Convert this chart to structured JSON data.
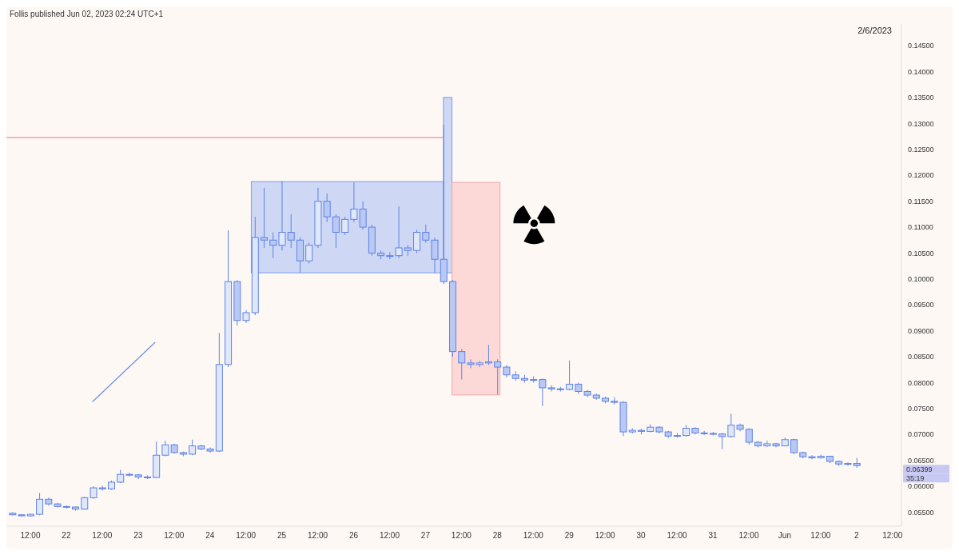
{
  "chart_data": {
    "type": "candlestick",
    "subtitle": "2/6/2023",
    "annotations": [
      "Follis published Jun 02, 2023 02:24 UTC+1",
      "0.06399",
      "35:19"
    ],
    "color": "#5f83e6",
    "x": [
      "2023-05-21T06:00",
      "2023-05-21T09:00",
      "2023-05-21T12:00",
      "2023-05-21T15:00",
      "2023-05-21T18:00",
      "2023-05-21T21:00",
      "2023-05-22T00:00",
      "2023-05-22T03:00",
      "2023-05-22T06:00",
      "2023-05-22T09:00",
      "2023-05-22T12:00",
      "2023-05-22T15:00",
      "2023-05-22T18:00",
      "2023-05-22T21:00",
      "2023-05-23T00:00",
      "2023-05-23T03:00",
      "2023-05-23T06:00",
      "2023-05-23T09:00",
      "2023-05-23T12:00",
      "2023-05-23T15:00",
      "2023-05-23T18:00",
      "2023-05-23T21:00",
      "2023-05-24T00:00",
      "2023-05-24T03:00",
      "2023-05-24T06:00",
      "2023-05-24T09:00",
      "2023-05-24T12:00",
      "2023-05-24T15:00",
      "2023-05-24T18:00",
      "2023-05-24T21:00",
      "2023-05-25T00:00",
      "2023-05-25T03:00",
      "2023-05-25T06:00",
      "2023-05-25T09:00",
      "2023-05-25T12:00",
      "2023-05-25T15:00",
      "2023-05-25T18:00",
      "2023-05-25T21:00",
      "2023-05-26T00:00",
      "2023-05-26T03:00",
      "2023-05-26T06:00",
      "2023-05-26T09:00",
      "2023-05-26T12:00",
      "2023-05-26T15:00",
      "2023-05-26T18:00",
      "2023-05-26T21:00",
      "2023-05-27T00:00",
      "2023-05-27T03:00",
      "2023-05-27T06:00",
      "2023-05-27T09:00",
      "2023-05-27T12:00",
      "2023-05-27T15:00",
      "2023-05-27T18:00",
      "2023-05-27T21:00",
      "2023-05-28T00:00",
      "2023-05-28T03:00",
      "2023-05-28T06:00",
      "2023-05-28T09:00",
      "2023-05-28T12:00",
      "2023-05-28T15:00",
      "2023-05-28T18:00",
      "2023-05-28T21:00",
      "2023-05-29T00:00",
      "2023-05-29T03:00",
      "2023-05-29T06:00",
      "2023-05-29T09:00",
      "2023-05-29T12:00",
      "2023-05-29T15:00",
      "2023-05-29T18:00",
      "2023-05-29T21:00",
      "2023-05-30T00:00",
      "2023-05-30T03:00",
      "2023-05-30T06:00",
      "2023-05-30T09:00",
      "2023-05-30T12:00",
      "2023-05-30T15:00",
      "2023-05-30T18:00",
      "2023-05-30T21:00",
      "2023-05-31T00:00",
      "2023-05-31T03:00",
      "2023-05-31T06:00",
      "2023-05-31T09:00",
      "2023-05-31T12:00",
      "2023-05-31T15:00",
      "2023-05-31T18:00",
      "2023-05-31T21:00",
      "2023-06-01T00:00",
      "2023-06-01T03:00",
      "2023-06-01T06:00",
      "2023-06-01T09:00",
      "2023-06-01T12:00",
      "2023-06-01T15:00",
      "2023-06-01T18:00",
      "2023-06-01T21:00",
      "2023-06-02T00:00"
    ],
    "ohlc": [
      [
        0.0548,
        0.055,
        0.0544,
        0.0545
      ],
      [
        0.0545,
        0.0546,
        0.0542,
        0.0543
      ],
      [
        0.0543,
        0.0547,
        0.0542,
        0.0546
      ],
      [
        0.0546,
        0.0587,
        0.0544,
        0.0575
      ],
      [
        0.0575,
        0.0578,
        0.0563,
        0.0566
      ],
      [
        0.0566,
        0.0568,
        0.0559,
        0.0561
      ],
      [
        0.0561,
        0.0563,
        0.0557,
        0.056
      ],
      [
        0.056,
        0.0561,
        0.0553,
        0.0556
      ],
      [
        0.0556,
        0.058,
        0.0555,
        0.0578
      ],
      [
        0.0578,
        0.06,
        0.0576,
        0.0597
      ],
      [
        0.0597,
        0.0601,
        0.0592,
        0.0595
      ],
      [
        0.0595,
        0.0611,
        0.0593,
        0.0608
      ],
      [
        0.0608,
        0.0632,
        0.0606,
        0.0623
      ],
      [
        0.0623,
        0.0626,
        0.0619,
        0.0622
      ],
      [
        0.0622,
        0.0624,
        0.0614,
        0.0618
      ],
      [
        0.0618,
        0.0621,
        0.0614,
        0.0617
      ],
      [
        0.0617,
        0.0686,
        0.0616,
        0.066
      ],
      [
        0.066,
        0.0688,
        0.0658,
        0.068
      ],
      [
        0.068,
        0.0682,
        0.0663,
        0.0665
      ],
      [
        0.0665,
        0.0667,
        0.0658,
        0.0662
      ],
      [
        0.0662,
        0.069,
        0.066,
        0.0678
      ],
      [
        0.0678,
        0.068,
        0.067,
        0.0672
      ],
      [
        0.0672,
        0.0675,
        0.0665,
        0.0668
      ],
      [
        0.0668,
        0.0896,
        0.0666,
        0.0835
      ],
      [
        0.0835,
        0.1094,
        0.083,
        0.0995
      ],
      [
        0.0995,
        0.0998,
        0.091,
        0.092
      ],
      [
        0.092,
        0.094,
        0.0915,
        0.0935
      ],
      [
        0.0935,
        0.112,
        0.093,
        0.108
      ],
      [
        0.108,
        0.1176,
        0.106,
        0.1075
      ],
      [
        0.1075,
        0.109,
        0.104,
        0.1065
      ],
      [
        0.1065,
        0.1189,
        0.1055,
        0.109
      ],
      [
        0.109,
        0.1125,
        0.106,
        0.1075
      ],
      [
        0.1075,
        0.108,
        0.1012,
        0.1035
      ],
      [
        0.1035,
        0.107,
        0.103,
        0.1065
      ],
      [
        0.1065,
        0.1176,
        0.106,
        0.115
      ],
      [
        0.115,
        0.1165,
        0.111,
        0.112
      ],
      [
        0.112,
        0.1125,
        0.106,
        0.109
      ],
      [
        0.109,
        0.112,
        0.1085,
        0.1115
      ],
      [
        0.1115,
        0.1186,
        0.111,
        0.1135
      ],
      [
        0.1135,
        0.115,
        0.1095,
        0.11
      ],
      [
        0.11,
        0.1105,
        0.1045,
        0.105
      ],
      [
        0.105,
        0.1055,
        0.1038,
        0.1045
      ],
      [
        0.1045,
        0.1052,
        0.1038,
        0.1045
      ],
      [
        0.1045,
        0.114,
        0.104,
        0.106
      ],
      [
        0.106,
        0.1065,
        0.1045,
        0.1055
      ],
      [
        0.1055,
        0.1095,
        0.105,
        0.109
      ],
      [
        0.109,
        0.1105,
        0.107,
        0.1075
      ],
      [
        0.1075,
        0.108,
        0.1012,
        0.1038
      ],
      [
        0.1038,
        0.1298,
        0.099,
        0.0995
      ],
      [
        0.0995,
        0.0998,
        0.085,
        0.086
      ],
      [
        0.086,
        0.0865,
        0.0806,
        0.0838
      ],
      [
        0.0838,
        0.0845,
        0.0828,
        0.0835
      ],
      [
        0.0835,
        0.0842,
        0.083,
        0.0838
      ],
      [
        0.0838,
        0.0873,
        0.0834,
        0.084
      ],
      [
        0.084,
        0.0845,
        0.0777,
        0.083
      ],
      [
        0.083,
        0.0834,
        0.081,
        0.0815
      ],
      [
        0.0815,
        0.0822,
        0.0804,
        0.0808
      ],
      [
        0.0808,
        0.0815,
        0.08,
        0.0805
      ],
      [
        0.0805,
        0.0812,
        0.08,
        0.0806
      ],
      [
        0.0806,
        0.0808,
        0.0755,
        0.079
      ],
      [
        0.079,
        0.0795,
        0.0783,
        0.0788
      ],
      [
        0.0788,
        0.0792,
        0.0783,
        0.0787
      ],
      [
        0.0787,
        0.0843,
        0.0785,
        0.0797
      ],
      [
        0.0797,
        0.08,
        0.0778,
        0.0783
      ],
      [
        0.0783,
        0.0786,
        0.0772,
        0.0776
      ],
      [
        0.0776,
        0.0779,
        0.0767,
        0.077
      ],
      [
        0.077,
        0.0773,
        0.076,
        0.0764
      ],
      [
        0.0764,
        0.0772,
        0.0758,
        0.0762
      ],
      [
        0.0762,
        0.0764,
        0.0697,
        0.0705
      ],
      [
        0.0705,
        0.0712,
        0.0702,
        0.0708
      ],
      [
        0.0708,
        0.0711,
        0.07,
        0.0706
      ],
      [
        0.0706,
        0.072,
        0.0704,
        0.0714
      ],
      [
        0.0714,
        0.0716,
        0.0702,
        0.0705
      ],
      [
        0.0705,
        0.0707,
        0.0693,
        0.0697
      ],
      [
        0.0697,
        0.0703,
        0.0694,
        0.0698
      ],
      [
        0.0698,
        0.0718,
        0.0696,
        0.0712
      ],
      [
        0.0712,
        0.0714,
        0.07,
        0.0703
      ],
      [
        0.0703,
        0.0707,
        0.0699,
        0.0702
      ],
      [
        0.0702,
        0.0705,
        0.0698,
        0.0701
      ],
      [
        0.0701,
        0.0703,
        0.0672,
        0.0696
      ],
      [
        0.0696,
        0.074,
        0.0694,
        0.0718
      ],
      [
        0.0718,
        0.0721,
        0.0706,
        0.071
      ],
      [
        0.071,
        0.0712,
        0.068,
        0.0685
      ],
      [
        0.0685,
        0.0687,
        0.0675,
        0.0678
      ],
      [
        0.0678,
        0.0688,
        0.0676,
        0.0682
      ],
      [
        0.0682,
        0.0684,
        0.0675,
        0.0678
      ],
      [
        0.0678,
        0.0694,
        0.0677,
        0.069
      ],
      [
        0.069,
        0.0692,
        0.0662,
        0.0665
      ],
      [
        0.0665,
        0.0667,
        0.0654,
        0.0657
      ],
      [
        0.0657,
        0.066,
        0.0652,
        0.0655
      ],
      [
        0.0655,
        0.0661,
        0.0653,
        0.0658
      ],
      [
        0.0658,
        0.0659,
        0.0645,
        0.0648
      ],
      [
        0.0648,
        0.065,
        0.0639,
        0.0643
      ],
      [
        0.0643,
        0.0646,
        0.064,
        0.0644
      ],
      [
        0.0644,
        0.0655,
        0.0636,
        0.06399
      ]
    ],
    "xlim": [
      "2023-05-21T04:00",
      "2023-06-02T15:00"
    ],
    "xticks": [
      {
        "value": "2023-05-21T12:00",
        "label": "12:00"
      },
      {
        "value": "2023-05-22T00:00",
        "label": "22"
      },
      {
        "value": "2023-05-22T12:00",
        "label": "12:00"
      },
      {
        "value": "2023-05-23T00:00",
        "label": "23"
      },
      {
        "value": "2023-05-23T12:00",
        "label": "12:00"
      },
      {
        "value": "2023-05-24T00:00",
        "label": "24"
      },
      {
        "value": "2023-05-24T12:00",
        "label": "12:00"
      },
      {
        "value": "2023-05-25T00:00",
        "label": "25"
      },
      {
        "value": "2023-05-25T12:00",
        "label": "12:00"
      },
      {
        "value": "2023-05-26T00:00",
        "label": "26"
      },
      {
        "value": "2023-05-26T12:00",
        "label": "12:00"
      },
      {
        "value": "2023-05-27T00:00",
        "label": "27"
      },
      {
        "value": "2023-05-27T12:00",
        "label": "12:00"
      },
      {
        "value": "2023-05-28T00:00",
        "label": "28"
      },
      {
        "value": "2023-05-28T12:00",
        "label": "12:00"
      },
      {
        "value": "2023-05-29T00:00",
        "label": "29"
      },
      {
        "value": "2023-05-29T12:00",
        "label": "12:00"
      },
      {
        "value": "2023-05-30T00:00",
        "label": "30"
      },
      {
        "value": "2023-05-30T12:00",
        "label": "12:00"
      },
      {
        "value": "2023-05-31T00:00",
        "label": "31"
      },
      {
        "value": "2023-05-31T12:00",
        "label": "12:00"
      },
      {
        "value": "2023-06-01T00:00",
        "label": "Jun"
      },
      {
        "value": "2023-06-01T12:00",
        "label": "12:00"
      },
      {
        "value": "2023-06-02T00:00",
        "label": "2"
      },
      {
        "value": "2023-06-02T12:00",
        "label": "12:00"
      }
    ],
    "ylim": [
      0.0523,
      0.1492
    ],
    "yticks": [
      {
        "value": 0.055,
        "label": "0.05500"
      },
      {
        "value": 0.06,
        "label": "0.06000"
      },
      {
        "value": 0.065,
        "label": "0.06500"
      },
      {
        "value": 0.07,
        "label": "0.07000"
      },
      {
        "value": 0.075,
        "label": "0.07500"
      },
      {
        "value": 0.08,
        "label": "0.08000"
      },
      {
        "value": 0.085,
        "label": "0.08500"
      },
      {
        "value": 0.09,
        "label": "0.09000"
      },
      {
        "value": 0.095,
        "label": "0.09500"
      },
      {
        "value": 0.1,
        "label": "0.10000"
      },
      {
        "value": 0.105,
        "label": "0.10500"
      },
      {
        "value": 0.11,
        "label": "0.11000"
      },
      {
        "value": 0.115,
        "label": "0.11500"
      },
      {
        "value": 0.12,
        "label": "0.12000"
      },
      {
        "value": 0.125,
        "label": "0.12500"
      },
      {
        "value": 0.13,
        "label": "0.13000"
      },
      {
        "value": 0.135,
        "label": "0.13500"
      },
      {
        "value": 0.14,
        "label": "0.14000"
      },
      {
        "value": 0.145,
        "label": "0.14500"
      }
    ],
    "ref_lines": [
      {
        "axis": "y",
        "value": 0.1273,
        "color": "#f28b9b"
      }
    ]
  }
}
